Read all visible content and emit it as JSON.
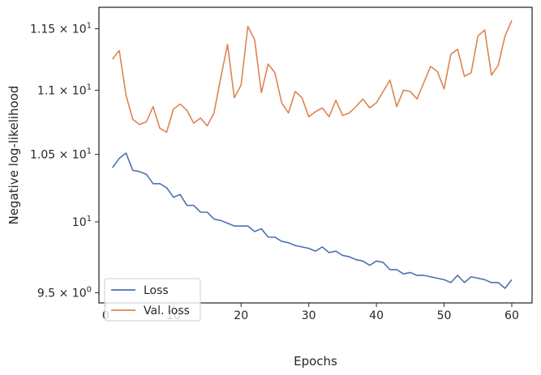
{
  "chart_data": {
    "type": "line",
    "xlabel": "Epochs",
    "ylabel": "Negative log-likelihood",
    "xlim": [
      -1,
      63
    ],
    "ylim": [
      9.43,
      11.68
    ],
    "y_scale": "log",
    "grid": false,
    "legend_position": "lower-left",
    "x_ticks": [
      0,
      10,
      20,
      30,
      40,
      50,
      60
    ],
    "x_tick_labels": [
      "0",
      "10",
      "20",
      "30",
      "40",
      "50",
      "60"
    ],
    "y_ticks": [
      9.5,
      10,
      10.5,
      11,
      11.5
    ],
    "y_tick_labels": [
      {
        "mant": "9.5",
        "times": "×",
        "base": "10",
        "exp": "0"
      },
      {
        "mant": "",
        "times": "",
        "base": "10",
        "exp": "1"
      },
      {
        "mant": "1.05",
        "times": "×",
        "base": "10",
        "exp": "1"
      },
      {
        "mant": "1.1",
        "times": "×",
        "base": "10",
        "exp": "1"
      },
      {
        "mant": "1.15",
        "times": "×",
        "base": "10",
        "exp": "1"
      }
    ],
    "x": [
      1,
      2,
      3,
      4,
      5,
      6,
      7,
      8,
      9,
      10,
      11,
      12,
      13,
      14,
      15,
      16,
      17,
      18,
      19,
      20,
      21,
      22,
      23,
      24,
      25,
      26,
      27,
      28,
      29,
      30,
      31,
      32,
      33,
      34,
      35,
      36,
      37,
      38,
      39,
      40,
      41,
      42,
      43,
      44,
      45,
      46,
      47,
      48,
      49,
      50,
      51,
      52,
      53,
      54,
      55,
      56,
      57,
      58,
      59,
      60
    ],
    "series": [
      {
        "name": "Loss",
        "color": "#4c72b0",
        "values": [
          10.4,
          10.47,
          10.51,
          10.38,
          10.37,
          10.35,
          10.28,
          10.28,
          10.25,
          10.18,
          10.2,
          10.12,
          10.12,
          10.07,
          10.07,
          10.02,
          10.01,
          9.99,
          9.97,
          9.97,
          9.97,
          9.93,
          9.95,
          9.89,
          9.89,
          9.86,
          9.85,
          9.83,
          9.82,
          9.81,
          9.79,
          9.82,
          9.78,
          9.79,
          9.76,
          9.75,
          9.73,
          9.72,
          9.69,
          9.72,
          9.71,
          9.66,
          9.66,
          9.63,
          9.64,
          9.62,
          9.62,
          9.61,
          9.6,
          9.59,
          9.57,
          9.62,
          9.57,
          9.61,
          9.6,
          9.59,
          9.57,
          9.57,
          9.53,
          9.59
        ]
      },
      {
        "name": "Val. loss",
        "color": "#dd8452",
        "values": [
          11.25,
          11.32,
          10.96,
          10.77,
          10.73,
          10.75,
          10.87,
          10.7,
          10.67,
          10.85,
          10.89,
          10.84,
          10.74,
          10.78,
          10.72,
          10.82,
          11.1,
          11.37,
          10.94,
          11.04,
          11.52,
          11.41,
          10.98,
          11.21,
          11.14,
          10.9,
          10.82,
          10.99,
          10.94,
          10.79,
          10.83,
          10.86,
          10.79,
          10.92,
          10.8,
          10.82,
          10.87,
          10.93,
          10.86,
          10.9,
          10.99,
          11.08,
          10.87,
          11.0,
          10.99,
          10.93,
          11.06,
          11.19,
          11.15,
          11.01,
          11.29,
          11.33,
          11.11,
          11.14,
          11.44,
          11.49,
          11.12,
          11.2,
          11.44,
          11.57
        ]
      }
    ]
  }
}
